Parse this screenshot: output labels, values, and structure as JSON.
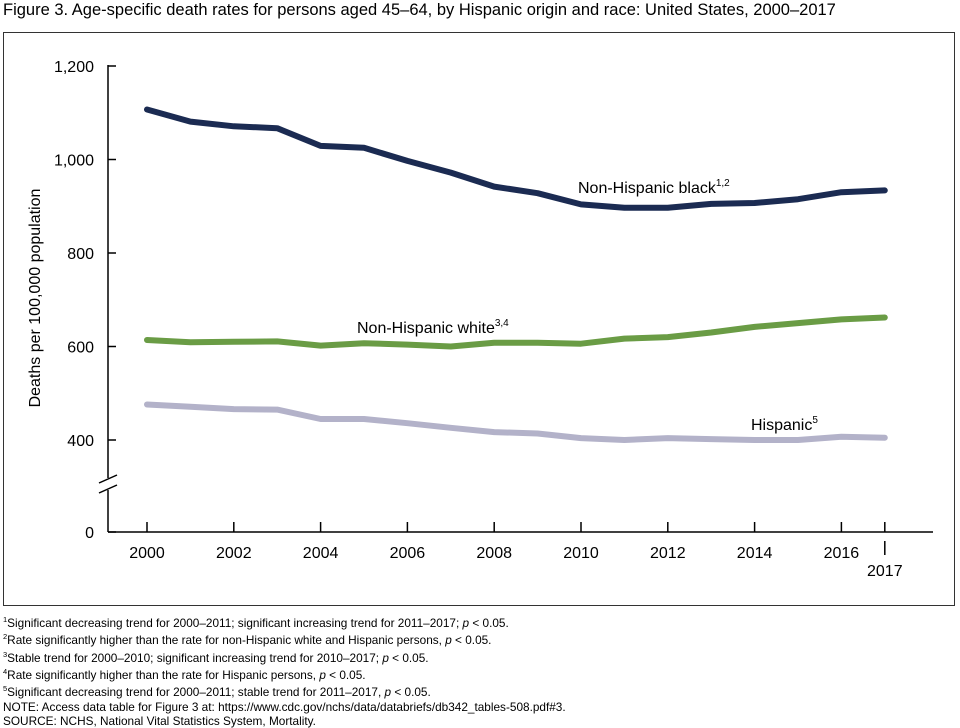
{
  "figure_title": "Figure 3. Age-specific death rates for persons aged 45–64, by Hispanic origin and race: United States, 2000–2017",
  "chart_data": {
    "type": "line",
    "title": "",
    "xlabel": "",
    "ylabel": "Deaths per 100,000 population",
    "x": [
      2000,
      2001,
      2002,
      2003,
      2004,
      2005,
      2006,
      2007,
      2008,
      2009,
      2010,
      2011,
      2012,
      2013,
      2014,
      2015,
      2016,
      2017
    ],
    "x_tick_labels": [
      "2000",
      "2002",
      "2004",
      "2006",
      "2008",
      "2010",
      "2012",
      "2014",
      "2016",
      "2017"
    ],
    "y_tick_labels": [
      "0",
      "400",
      "600",
      "800",
      "1,000",
      "1,200"
    ],
    "ylim": [
      0,
      1200
    ],
    "y_axis_break": true,
    "grid": false,
    "legend": "inline labels",
    "series": [
      {
        "name": "Non-Hispanic black",
        "superscript": "1,2",
        "color": "#1b2b52",
        "values": [
          1107,
          1081,
          1071,
          1067,
          1029,
          1025,
          997,
          972,
          942,
          928,
          904,
          897,
          897,
          905,
          907,
          915,
          930,
          934
        ]
      },
      {
        "name": "Non-Hispanic white",
        "superscript": "3,4",
        "color": "#6a9c45",
        "values": [
          614,
          609,
          610,
          611,
          602,
          607,
          604,
          600,
          608,
          608,
          606,
          617,
          620,
          630,
          642,
          650,
          658,
          662
        ]
      },
      {
        "name": "Hispanic",
        "superscript": "5",
        "color": "#b3b2c9",
        "values": [
          476,
          471,
          466,
          465,
          445,
          445,
          436,
          426,
          417,
          414,
          404,
          400,
          404,
          402,
          400,
          400,
          407,
          405
        ]
      }
    ]
  },
  "footnotes": {
    "fn1": {
      "mark": "1",
      "text": "Significant decreasing trend for 2000–2011; significant increasing trend for 2011–2017; ",
      "p": "p",
      "tail": " < 0.05."
    },
    "fn2": {
      "mark": "2",
      "text": "Rate significantly higher than the rate for non-Hispanic white and Hispanic persons, ",
      "p": "p",
      "tail": " < 0.05."
    },
    "fn3": {
      "mark": "3",
      "text": "Stable trend for 2000–2010; significant increasing trend for 2010–2017; ",
      "p": "p",
      "tail": " < 0.05."
    },
    "fn4": {
      "mark": "4",
      "text": "Rate significantly higher than the rate for Hispanic persons, ",
      "p": "p",
      "tail": " < 0.05."
    },
    "fn5": {
      "mark": "5",
      "text": "Significant decreasing trend for 2000–2011; stable trend for 2011–2017, ",
      "p": "p",
      "tail": " < 0.05."
    },
    "note": "NOTE: Access data table for Figure 3 at: https://www.cdc.gov/nchs/data/databriefs/db342_tables-508.pdf#3.",
    "source": "SOURCE: NCHS, National Vital Statistics System, Mortality."
  }
}
